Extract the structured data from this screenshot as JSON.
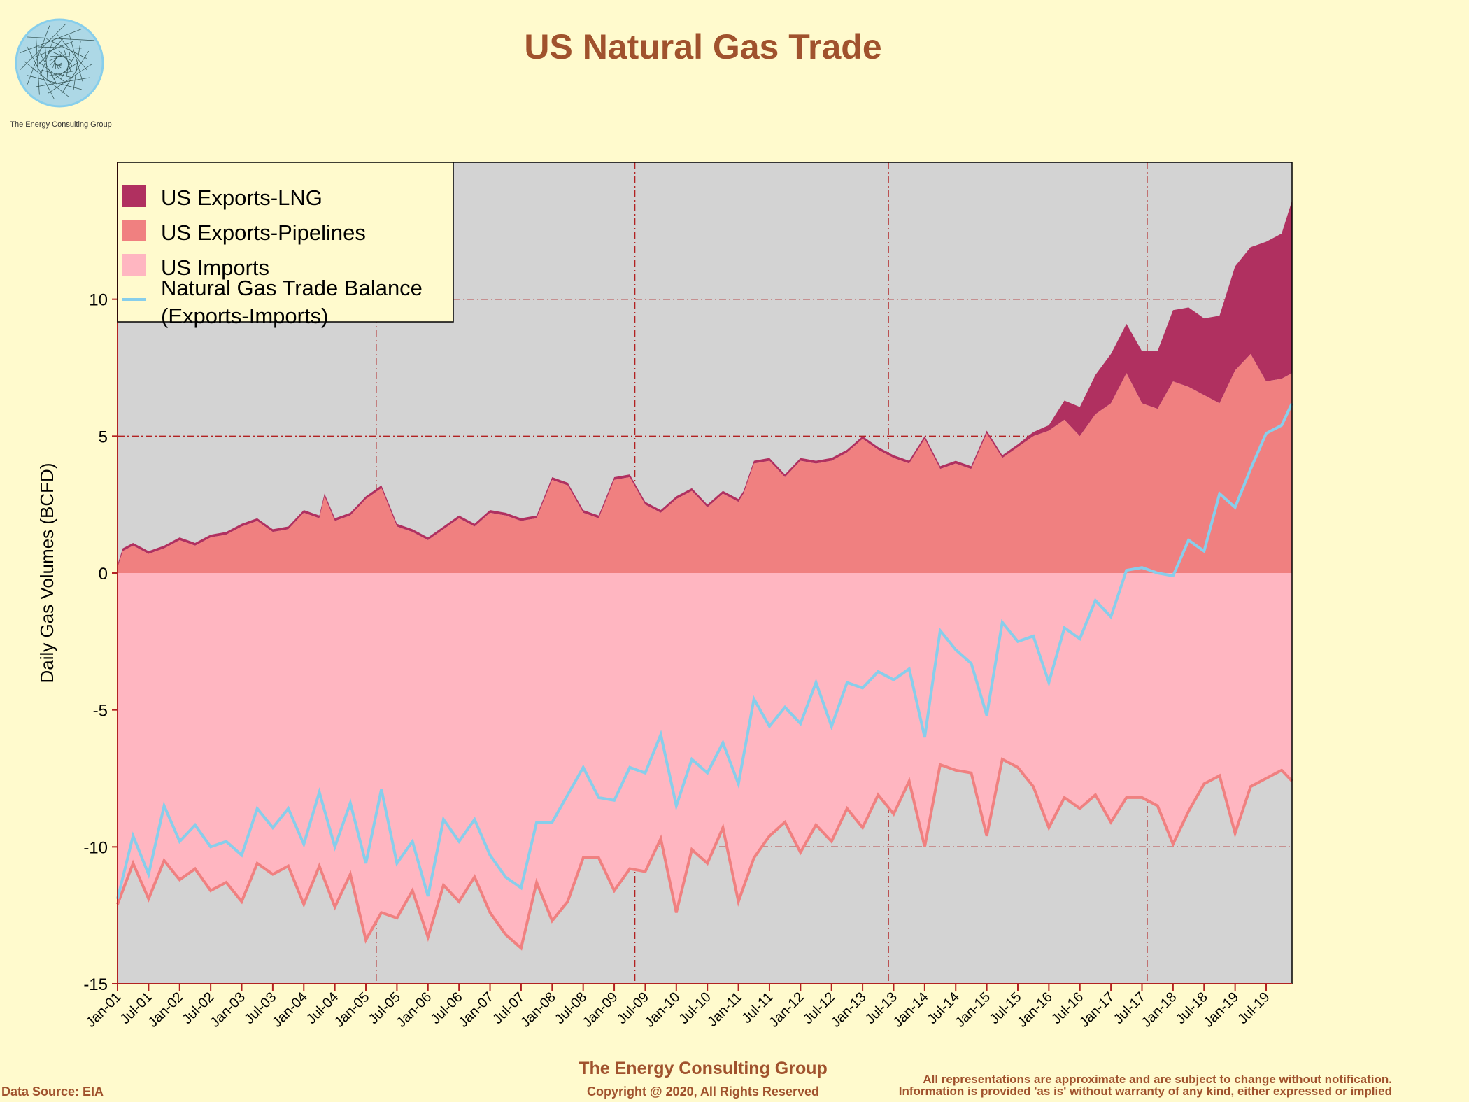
{
  "logo": {
    "icon": "spiral-logo-icon",
    "caption": "The Energy Consulting Group"
  },
  "footer": {
    "org": "The Energy Consulting Group",
    "copyright": "Copyright @ 2020, All Rights Reserved",
    "source": "Data Source: EIA",
    "disclaimer_line1": "All representations are approximate and are subject to change without notification.",
    "disclaimer_line2": "Information is provided 'as is' without warranty of any kind, either expressed or implied"
  },
  "colors": {
    "background": "#fffacd",
    "plot_background": "#d3d3d3",
    "lng": "#b03060",
    "pipelines": "#f08080",
    "imports": "#ffb6c1",
    "imports_line": "#f08080",
    "balance": "#87ceeb",
    "grid": "#b22222",
    "title": "#a0522d"
  },
  "chart_data": {
    "type": "area",
    "title": "US Natural Gas Trade",
    "ylabel": "Daily Gas Volumes (BCFD)",
    "xlabel": "",
    "ylim": [
      -15,
      15
    ],
    "yticks": [
      -15,
      -10,
      -5,
      0,
      5,
      10
    ],
    "x_start": "Jan-01",
    "x_end": "Dec-19",
    "x_tick_labels": [
      "Jan-01",
      "Jul-01",
      "Jan-02",
      "Jul-02",
      "Jan-03",
      "Jul-03",
      "Jan-04",
      "Jul-04",
      "Jan-05",
      "Jul-05",
      "Jan-06",
      "Jul-06",
      "Jan-07",
      "Jul-07",
      "Jan-08",
      "Jul-08",
      "Jan-09",
      "Jul-09",
      "Jan-10",
      "Jul-10",
      "Jan-11",
      "Jul-11",
      "Jan-12",
      "Jul-12",
      "Jan-13",
      "Jul-13",
      "Jan-14",
      "Jul-14",
      "Jan-15",
      "Jul-15",
      "Jan-16",
      "Jul-16",
      "Jan-17",
      "Jul-17",
      "Jan-18",
      "Jul-18",
      "Jan-19",
      "Jul-19"
    ],
    "grid": "dashed",
    "legend_position": "top-left",
    "legend": [
      "US Exports-LNG",
      "US Exports-Pipelines",
      "US Imports",
      "Natural Gas Trade Balance",
      "(Exports-Imports)"
    ],
    "series": [
      {
        "name": "US Exports-Pipelines",
        "points": [
          [
            "Jan-01",
            0.2
          ],
          [
            "Feb-01",
            0.8
          ],
          [
            "Apr-01",
            1.0
          ],
          [
            "Jul-01",
            0.7
          ],
          [
            "Oct-01",
            0.9
          ],
          [
            "Jan-02",
            1.2
          ],
          [
            "Apr-02",
            1.0
          ],
          [
            "Jul-02",
            1.3
          ],
          [
            "Oct-02",
            1.4
          ],
          [
            "Jan-03",
            1.7
          ],
          [
            "Apr-03",
            1.9
          ],
          [
            "Jul-03",
            1.5
          ],
          [
            "Oct-03",
            1.6
          ],
          [
            "Jan-04",
            2.2
          ],
          [
            "Apr-04",
            2.0
          ],
          [
            "May-04",
            2.8
          ],
          [
            "Jul-04",
            1.9
          ],
          [
            "Oct-04",
            2.1
          ],
          [
            "Jan-05",
            2.7
          ],
          [
            "Apr-05",
            3.1
          ],
          [
            "Jul-05",
            1.7
          ],
          [
            "Oct-05",
            1.5
          ],
          [
            "Jan-06",
            1.2
          ],
          [
            "Apr-06",
            1.6
          ],
          [
            "Jul-06",
            2.0
          ],
          [
            "Oct-06",
            1.7
          ],
          [
            "Jan-07",
            2.2
          ],
          [
            "Apr-07",
            2.1
          ],
          [
            "Jul-07",
            1.9
          ],
          [
            "Oct-07",
            2.0
          ],
          [
            "Jan-08",
            3.4
          ],
          [
            "Apr-08",
            3.2
          ],
          [
            "Jul-08",
            2.2
          ],
          [
            "Oct-08",
            2.0
          ],
          [
            "Jan-09",
            3.4
          ],
          [
            "Apr-09",
            3.5
          ],
          [
            "Jul-09",
            2.5
          ],
          [
            "Oct-09",
            2.2
          ],
          [
            "Jan-10",
            2.7
          ],
          [
            "Apr-10",
            3.0
          ],
          [
            "Jul-10",
            2.4
          ],
          [
            "Oct-10",
            2.9
          ],
          [
            "Jan-11",
            2.6
          ],
          [
            "Feb-11",
            2.9
          ],
          [
            "Apr-11",
            4.0
          ],
          [
            "Jul-11",
            4.1
          ],
          [
            "Oct-11",
            3.5
          ],
          [
            "Jan-12",
            4.1
          ],
          [
            "Apr-12",
            4.0
          ],
          [
            "Jul-12",
            4.1
          ],
          [
            "Oct-12",
            4.4
          ],
          [
            "Jan-13",
            4.9
          ],
          [
            "Apr-13",
            4.5
          ],
          [
            "Jul-13",
            4.2
          ],
          [
            "Oct-13",
            4.0
          ],
          [
            "Jan-14",
            4.9
          ],
          [
            "Apr-14",
            3.8
          ],
          [
            "Jul-14",
            4.0
          ],
          [
            "Oct-14",
            3.8
          ],
          [
            "Jan-15",
            5.1
          ],
          [
            "Apr-15",
            4.2
          ],
          [
            "Jul-15",
            4.6
          ],
          [
            "Oct-15",
            5.0
          ],
          [
            "Jan-16",
            5.2
          ],
          [
            "Apr-16",
            5.6
          ],
          [
            "Jul-16",
            5.0
          ],
          [
            "Oct-16",
            5.8
          ],
          [
            "Jan-17",
            6.2
          ],
          [
            "Apr-17",
            7.3
          ],
          [
            "Jul-17",
            6.2
          ],
          [
            "Oct-17",
            6.0
          ],
          [
            "Jan-18",
            7.0
          ],
          [
            "Apr-18",
            6.8
          ],
          [
            "Jul-18",
            6.5
          ],
          [
            "Oct-18",
            6.2
          ],
          [
            "Jan-19",
            7.4
          ],
          [
            "Apr-19",
            8.0
          ],
          [
            "Jul-19",
            7.0
          ],
          [
            "Oct-19",
            7.1
          ],
          [
            "Dec-19",
            7.3
          ]
        ]
      },
      {
        "name": "US Exports-LNG",
        "points": [
          [
            "Jan-01",
            0.1
          ],
          [
            "Jan-05",
            0.1
          ],
          [
            "Jan-09",
            0.1
          ],
          [
            "Jan-11",
            0.1
          ],
          [
            "Jul-15",
            0.1
          ],
          [
            "Jan-16",
            0.2
          ],
          [
            "Apr-16",
            0.7
          ],
          [
            "Jan-17",
            1.8
          ],
          [
            "Apr-17",
            1.8
          ],
          [
            "Jul-17",
            1.9
          ],
          [
            "Oct-17",
            2.1
          ],
          [
            "Jan-18",
            2.6
          ],
          [
            "Apr-18",
            2.9
          ],
          [
            "Jul-18",
            2.8
          ],
          [
            "Oct-18",
            3.2
          ],
          [
            "Jan-19",
            3.8
          ],
          [
            "Apr-19",
            3.9
          ],
          [
            "Jul-19",
            5.1
          ],
          [
            "Oct-19",
            5.3
          ],
          [
            "Dec-19",
            6.3
          ]
        ]
      },
      {
        "name": "US Imports",
        "points": [
          [
            "Jan-01",
            -12.1
          ],
          [
            "Apr-01",
            -10.6
          ],
          [
            "Jul-01",
            -11.9
          ],
          [
            "Oct-01",
            -10.5
          ],
          [
            "Jan-02",
            -11.2
          ],
          [
            "Apr-02",
            -10.8
          ],
          [
            "Jul-02",
            -11.6
          ],
          [
            "Oct-02",
            -11.3
          ],
          [
            "Jan-03",
            -12.0
          ],
          [
            "Apr-03",
            -10.6
          ],
          [
            "Jul-03",
            -11.0
          ],
          [
            "Oct-03",
            -10.7
          ],
          [
            "Jan-04",
            -12.1
          ],
          [
            "Apr-04",
            -10.7
          ],
          [
            "Jul-04",
            -12.2
          ],
          [
            "Oct-04",
            -11.0
          ],
          [
            "Jan-05",
            -13.4
          ],
          [
            "Apr-05",
            -12.4
          ],
          [
            "Jul-05",
            -12.6
          ],
          [
            "Oct-05",
            -11.6
          ],
          [
            "Jan-06",
            -13.3
          ],
          [
            "Apr-06",
            -11.4
          ],
          [
            "Jul-06",
            -12.0
          ],
          [
            "Oct-06",
            -11.1
          ],
          [
            "Jan-07",
            -12.4
          ],
          [
            "Apr-07",
            -13.2
          ],
          [
            "Jul-07",
            -13.7
          ],
          [
            "Oct-07",
            -11.3
          ],
          [
            "Jan-08",
            -12.7
          ],
          [
            "Apr-08",
            -12.0
          ],
          [
            "Jul-08",
            -10.4
          ],
          [
            "Oct-08",
            -10.4
          ],
          [
            "Jan-09",
            -11.6
          ],
          [
            "Apr-09",
            -10.8
          ],
          [
            "Jul-09",
            -10.9
          ],
          [
            "Oct-09",
            -9.7
          ],
          [
            "Jan-10",
            -12.4
          ],
          [
            "Apr-10",
            -10.1
          ],
          [
            "Jul-10",
            -10.6
          ],
          [
            "Oct-10",
            -9.3
          ],
          [
            "Jan-11",
            -12.0
          ],
          [
            "Apr-11",
            -10.4
          ],
          [
            "Jul-11",
            -9.6
          ],
          [
            "Oct-11",
            -9.1
          ],
          [
            "Jan-12",
            -10.2
          ],
          [
            "Apr-12",
            -9.2
          ],
          [
            "Jul-12",
            -9.8
          ],
          [
            "Oct-12",
            -8.6
          ],
          [
            "Jan-13",
            -9.3
          ],
          [
            "Apr-13",
            -8.1
          ],
          [
            "Jul-13",
            -8.8
          ],
          [
            "Oct-13",
            -7.6
          ],
          [
            "Jan-14",
            -10.0
          ],
          [
            "Apr-14",
            -7.0
          ],
          [
            "Jul-14",
            -7.2
          ],
          [
            "Oct-14",
            -7.3
          ],
          [
            "Jan-15",
            -9.6
          ],
          [
            "Apr-15",
            -6.8
          ],
          [
            "Jul-15",
            -7.1
          ],
          [
            "Oct-15",
            -7.8
          ],
          [
            "Jan-16",
            -9.3
          ],
          [
            "Apr-16",
            -8.2
          ],
          [
            "Jul-16",
            -8.6
          ],
          [
            "Oct-16",
            -8.1
          ],
          [
            "Jan-17",
            -9.1
          ],
          [
            "Apr-17",
            -8.2
          ],
          [
            "Jul-17",
            -8.2
          ],
          [
            "Oct-17",
            -8.5
          ],
          [
            "Jan-18",
            -9.9
          ],
          [
            "Apr-18",
            -8.7
          ],
          [
            "Jul-18",
            -7.7
          ],
          [
            "Oct-18",
            -7.4
          ],
          [
            "Jan-19",
            -9.5
          ],
          [
            "Apr-19",
            -7.8
          ],
          [
            "Jul-19",
            -7.5
          ],
          [
            "Oct-19",
            -7.2
          ],
          [
            "Dec-19",
            -7.6
          ]
        ]
      },
      {
        "name": "Natural Gas Trade Balance",
        "points": [
          [
            "Jan-01",
            -11.9
          ],
          [
            "Apr-01",
            -9.6
          ],
          [
            "Jul-01",
            -11.0
          ],
          [
            "Oct-01",
            -8.5
          ],
          [
            "Jan-02",
            -9.8
          ],
          [
            "Apr-02",
            -9.2
          ],
          [
            "Jul-02",
            -10.0
          ],
          [
            "Oct-02",
            -9.8
          ],
          [
            "Jan-03",
            -10.3
          ],
          [
            "Apr-03",
            -8.6
          ],
          [
            "Jul-03",
            -9.3
          ],
          [
            "Oct-03",
            -8.6
          ],
          [
            "Jan-04",
            -9.9
          ],
          [
            "Apr-04",
            -8.0
          ],
          [
            "Jul-04",
            -10.0
          ],
          [
            "Oct-04",
            -8.4
          ],
          [
            "Jan-05",
            -10.6
          ],
          [
            "Apr-05",
            -7.9
          ],
          [
            "Jul-05",
            -10.6
          ],
          [
            "Oct-05",
            -9.8
          ],
          [
            "Jan-06",
            -11.8
          ],
          [
            "Apr-06",
            -9.0
          ],
          [
            "Jul-06",
            -9.8
          ],
          [
            "Oct-06",
            -9.0
          ],
          [
            "Jan-07",
            -10.3
          ],
          [
            "Apr-07",
            -11.1
          ],
          [
            "Jul-07",
            -11.5
          ],
          [
            "Oct-07",
            -9.1
          ],
          [
            "Jan-08",
            -9.1
          ],
          [
            "Apr-08",
            -8.1
          ],
          [
            "Jul-08",
            -7.1
          ],
          [
            "Oct-08",
            -8.2
          ],
          [
            "Jan-09",
            -8.3
          ],
          [
            "Apr-09",
            -7.1
          ],
          [
            "Jul-09",
            -7.3
          ],
          [
            "Oct-09",
            -5.9
          ],
          [
            "Jan-10",
            -8.5
          ],
          [
            "Apr-10",
            -6.8
          ],
          [
            "Jul-10",
            -7.3
          ],
          [
            "Oct-10",
            -6.2
          ],
          [
            "Jan-11",
            -7.7
          ],
          [
            "Apr-11",
            -4.6
          ],
          [
            "Jul-11",
            -5.6
          ],
          [
            "Oct-11",
            -4.9
          ],
          [
            "Jan-12",
            -5.5
          ],
          [
            "Apr-12",
            -4.0
          ],
          [
            "Jul-12",
            -5.6
          ],
          [
            "Oct-12",
            -4.0
          ],
          [
            "Jan-13",
            -4.2
          ],
          [
            "Apr-13",
            -3.6
          ],
          [
            "Jul-13",
            -3.9
          ],
          [
            "Oct-13",
            -3.5
          ],
          [
            "Jan-14",
            -6.0
          ],
          [
            "Apr-14",
            -2.1
          ],
          [
            "Jul-14",
            -2.8
          ],
          [
            "Oct-14",
            -3.3
          ],
          [
            "Jan-15",
            -5.2
          ],
          [
            "Apr-15",
            -1.8
          ],
          [
            "Jul-15",
            -2.5
          ],
          [
            "Oct-15",
            -2.3
          ],
          [
            "Jan-16",
            -4.0
          ],
          [
            "Apr-16",
            -2.0
          ],
          [
            "Jul-16",
            -2.4
          ],
          [
            "Oct-16",
            -1.0
          ],
          [
            "Jan-17",
            -1.6
          ],
          [
            "Apr-17",
            0.1
          ],
          [
            "Jul-17",
            0.2
          ],
          [
            "Oct-17",
            0.0
          ],
          [
            "Jan-18",
            -0.1
          ],
          [
            "Apr-18",
            1.2
          ],
          [
            "Jul-18",
            0.8
          ],
          [
            "Oct-18",
            2.9
          ],
          [
            "Jan-19",
            2.4
          ],
          [
            "Apr-19",
            3.8
          ],
          [
            "Jul-19",
            5.1
          ],
          [
            "Oct-19",
            5.4
          ],
          [
            "Dec-19",
            6.2
          ]
        ]
      }
    ]
  }
}
